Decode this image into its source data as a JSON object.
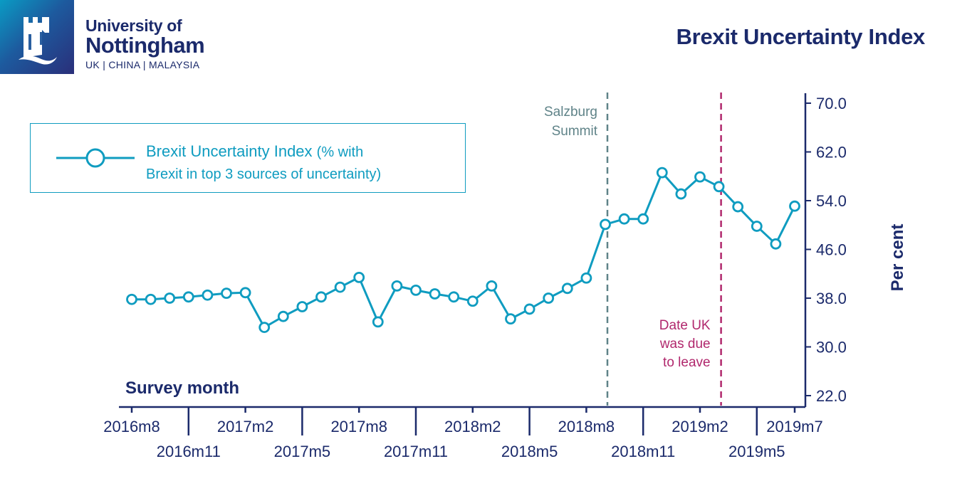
{
  "header": {
    "logo": {
      "icon": "castle-tower-icon",
      "line1": "University of",
      "line2": "Nottingham",
      "line3": "UK | CHINA | MALAYSIA"
    },
    "title": "Brexit Uncertainty Index"
  },
  "colors": {
    "series": "#0f9cc0",
    "axis": "#1b2a6b",
    "salzburg": "#5f8388",
    "leave": "#b1286d"
  },
  "chart_data": {
    "type": "line",
    "title": "Brexit Uncertainty Index",
    "xlabel": "Survey month",
    "ylabel": "Per cent",
    "ylim": [
      22.0,
      70.0
    ],
    "yticks": [
      "70.0",
      "62.0",
      "54.0",
      "46.0",
      "38.0",
      "30.0",
      "22.0"
    ],
    "ytick_values": [
      70,
      62,
      54,
      46,
      38,
      30,
      22
    ],
    "y_axis_side": "right",
    "grid": false,
    "legend": {
      "placement": "top-left",
      "label_main": "Brexit Uncertainty Index",
      "label_paren_1": "(% with",
      "label_line2": "Brexit in top 3 sources of uncertainty)"
    },
    "x": [
      "2016m8",
      "2016m9",
      "2016m10",
      "2016m11",
      "2016m12",
      "2017m1",
      "2017m2",
      "2017m3",
      "2017m4",
      "2017m5",
      "2017m6",
      "2017m7",
      "2017m8",
      "2017m9",
      "2017m10",
      "2017m11",
      "2017m12",
      "2018m1",
      "2018m2",
      "2018m3",
      "2018m4",
      "2018m5",
      "2018m6",
      "2018m7",
      "2018m8",
      "2018m9",
      "2018m10",
      "2018m11",
      "2018m12",
      "2019m1",
      "2019m2",
      "2019m3",
      "2019m4",
      "2019m5",
      "2019m6",
      "2019m7"
    ],
    "xticks_upper": [
      "2016m8",
      "2017m2",
      "2017m8",
      "2018m2",
      "2018m8",
      "2019m2",
      "2019m7"
    ],
    "xticks_lower": [
      "2016m11",
      "2017m5",
      "2017m11",
      "2018m5",
      "2018m11",
      "2019m5"
    ],
    "series": [
      {
        "name": "Brexit Uncertainty Index (% with Brexit in top 3 sources of uncertainty)",
        "values": [
          37.8,
          37.8,
          38.0,
          38.2,
          38.5,
          38.8,
          38.9,
          33.2,
          35.0,
          36.6,
          38.2,
          39.8,
          41.4,
          34.1,
          40.0,
          39.3,
          38.7,
          38.2,
          37.5,
          40.0,
          34.6,
          36.2,
          38.0,
          39.6,
          41.3,
          50.1,
          51.0,
          51.0,
          58.6,
          55.1,
          57.9,
          56.3,
          53.0,
          49.8,
          46.9,
          53.1
        ]
      }
    ],
    "annotations": [
      {
        "name": "salzburg",
        "x_index": 25,
        "lines": [
          "Salzburg",
          "Summit"
        ],
        "style": "dashed",
        "color": "#5f8388"
      },
      {
        "name": "leave-date",
        "x_index": 31,
        "lines": [
          "Date UK",
          "was due",
          "to leave"
        ],
        "style": "dashed",
        "color": "#b1286d"
      }
    ]
  }
}
